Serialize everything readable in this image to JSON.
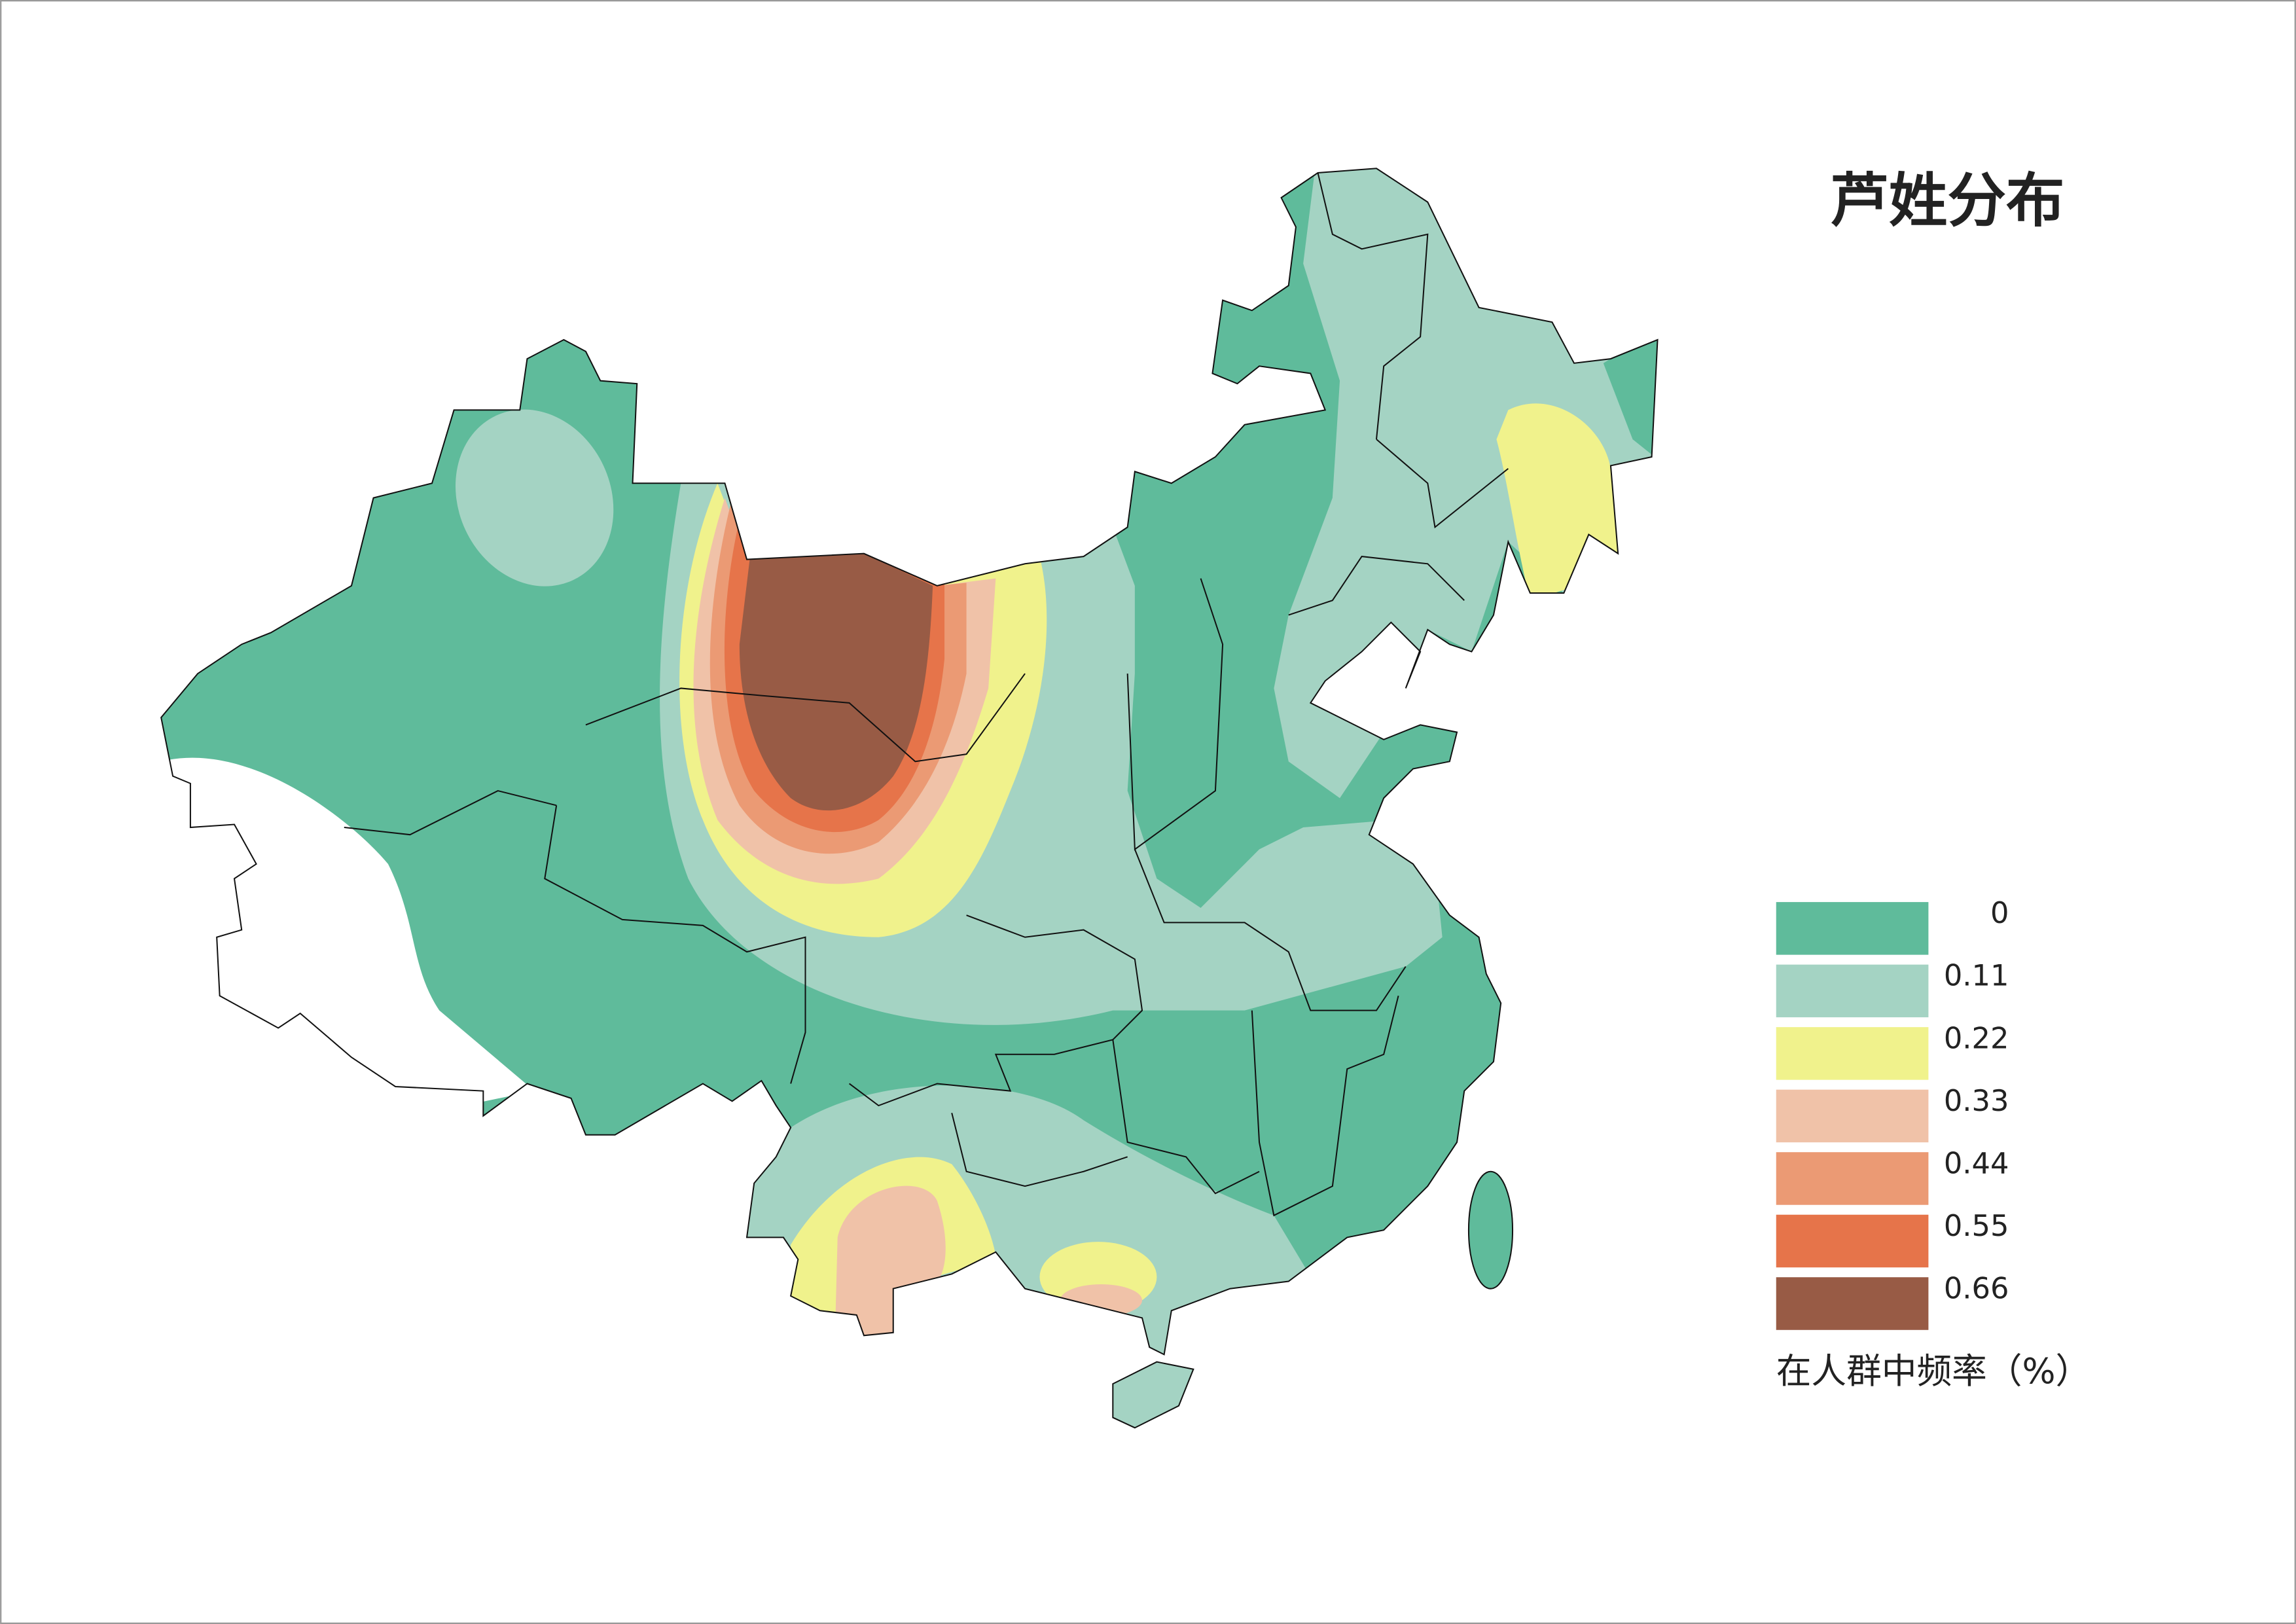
{
  "title": "芦姓分布",
  "legend": {
    "caption": "在人群中频率（%）",
    "items": [
      {
        "label": 0,
        "color": "#5fbb9b"
      },
      {
        "label": 0.11,
        "color": "#a4d3c3"
      },
      {
        "label": 0.22,
        "color": "#f0f28c"
      },
      {
        "label": 0.33,
        "color": "#f0c2a8"
      },
      {
        "label": 0.44,
        "color": "#eb9a74"
      },
      {
        "label": 0.55,
        "color": "#e6744a"
      },
      {
        "label": 0.66,
        "color": "#985b45"
      }
    ]
  }
}
